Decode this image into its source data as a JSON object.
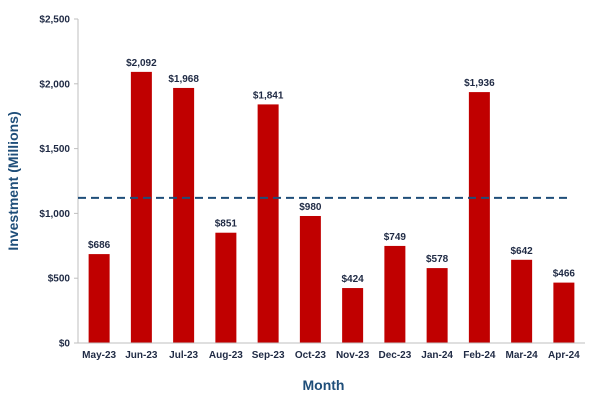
{
  "chart_data": {
    "type": "bar",
    "title": "",
    "xlabel": "Month",
    "ylabel": "Investment (Millions)",
    "categories": [
      "May-23",
      "Jun-23",
      "Jul-23",
      "Aug-23",
      "Sep-23",
      "Oct-23",
      "Nov-23",
      "Dec-23",
      "Jan-24",
      "Feb-24",
      "Mar-24",
      "Apr-24"
    ],
    "values": [
      686,
      2092,
      1968,
      851,
      1841,
      980,
      424,
      749,
      578,
      1936,
      642,
      466
    ],
    "value_labels": [
      "$686",
      "$2,092",
      "$1,968",
      "$851",
      "$1,841",
      "$980",
      "$424",
      "$749",
      "$578",
      "$1,936",
      "$642",
      "$466"
    ],
    "ylim": [
      0,
      2500
    ],
    "yticks": [
      0,
      500,
      1000,
      1500,
      2000,
      2500
    ],
    "ytick_labels": [
      "$0",
      "$500",
      "$1,000",
      "$1,500",
      "$2,000",
      "$2,500"
    ],
    "reference_line": {
      "value": 1120,
      "style": "dashed"
    },
    "grid": false,
    "legend": "none",
    "colors": {
      "bar": "#c00000",
      "reference_line": "#1f4e79",
      "axis_title": "#1f4e79",
      "text": "#1f2a44",
      "axis": "#bfbfbf"
    }
  }
}
